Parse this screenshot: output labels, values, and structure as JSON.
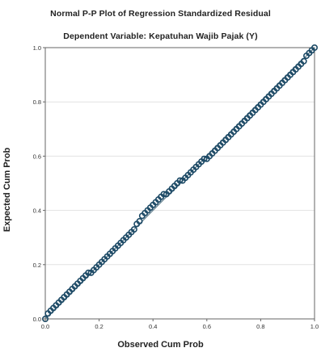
{
  "chart_data": {
    "type": "scatter",
    "title": "Normal P-P Plot of Regression Standardized Residual",
    "subtitle": "Dependent Variable: Kepatuhan Wajib Pajak (Y)",
    "xlabel": "Observed Cum Prob",
    "ylabel": "Expected Cum Prob",
    "xlim": [
      0,
      1
    ],
    "ylim": [
      0,
      1
    ],
    "x_ticks": [
      "0.0",
      "0.2",
      "0.4",
      "0.6",
      "0.8",
      "1.0"
    ],
    "y_ticks": [
      "0.0",
      "0.2",
      "0.4",
      "0.6",
      "0.8",
      "1.0"
    ],
    "grid": "horizontal",
    "reference_line": {
      "from": [
        0,
        0
      ],
      "to": [
        1,
        1
      ]
    },
    "colors": {
      "points": "#1d4a66",
      "reference_line": "#6d8795",
      "grid": "#e2e2e2",
      "axis": "#666666"
    },
    "points": [
      [
        0.0,
        0.0
      ],
      [
        0.01,
        0.02
      ],
      [
        0.02,
        0.03
      ],
      [
        0.03,
        0.04
      ],
      [
        0.04,
        0.05
      ],
      [
        0.05,
        0.06
      ],
      [
        0.06,
        0.07
      ],
      [
        0.07,
        0.08
      ],
      [
        0.08,
        0.09
      ],
      [
        0.09,
        0.1
      ],
      [
        0.1,
        0.11
      ],
      [
        0.11,
        0.12
      ],
      [
        0.12,
        0.13
      ],
      [
        0.13,
        0.14
      ],
      [
        0.14,
        0.15
      ],
      [
        0.15,
        0.16
      ],
      [
        0.16,
        0.17
      ],
      [
        0.17,
        0.17
      ],
      [
        0.18,
        0.18
      ],
      [
        0.19,
        0.19
      ],
      [
        0.2,
        0.2
      ],
      [
        0.21,
        0.21
      ],
      [
        0.22,
        0.22
      ],
      [
        0.23,
        0.23
      ],
      [
        0.24,
        0.24
      ],
      [
        0.25,
        0.25
      ],
      [
        0.26,
        0.26
      ],
      [
        0.27,
        0.27
      ],
      [
        0.28,
        0.28
      ],
      [
        0.29,
        0.29
      ],
      [
        0.3,
        0.3
      ],
      [
        0.31,
        0.31
      ],
      [
        0.32,
        0.32
      ],
      [
        0.33,
        0.33
      ],
      [
        0.34,
        0.35
      ],
      [
        0.35,
        0.36
      ],
      [
        0.36,
        0.38
      ],
      [
        0.37,
        0.39
      ],
      [
        0.38,
        0.4
      ],
      [
        0.39,
        0.41
      ],
      [
        0.4,
        0.42
      ],
      [
        0.41,
        0.43
      ],
      [
        0.42,
        0.44
      ],
      [
        0.43,
        0.45
      ],
      [
        0.44,
        0.46
      ],
      [
        0.45,
        0.46
      ],
      [
        0.46,
        0.47
      ],
      [
        0.47,
        0.48
      ],
      [
        0.48,
        0.49
      ],
      [
        0.49,
        0.5
      ],
      [
        0.5,
        0.51
      ],
      [
        0.51,
        0.51
      ],
      [
        0.52,
        0.52
      ],
      [
        0.53,
        0.53
      ],
      [
        0.54,
        0.54
      ],
      [
        0.55,
        0.55
      ],
      [
        0.56,
        0.56
      ],
      [
        0.57,
        0.57
      ],
      [
        0.58,
        0.58
      ],
      [
        0.59,
        0.59
      ],
      [
        0.6,
        0.59
      ],
      [
        0.61,
        0.6
      ],
      [
        0.62,
        0.61
      ],
      [
        0.63,
        0.62
      ],
      [
        0.64,
        0.63
      ],
      [
        0.65,
        0.64
      ],
      [
        0.66,
        0.65
      ],
      [
        0.67,
        0.66
      ],
      [
        0.68,
        0.67
      ],
      [
        0.69,
        0.68
      ],
      [
        0.7,
        0.69
      ],
      [
        0.71,
        0.7
      ],
      [
        0.72,
        0.71
      ],
      [
        0.73,
        0.72
      ],
      [
        0.74,
        0.73
      ],
      [
        0.75,
        0.74
      ],
      [
        0.76,
        0.75
      ],
      [
        0.77,
        0.76
      ],
      [
        0.78,
        0.77
      ],
      [
        0.79,
        0.78
      ],
      [
        0.8,
        0.79
      ],
      [
        0.81,
        0.8
      ],
      [
        0.82,
        0.81
      ],
      [
        0.83,
        0.82
      ],
      [
        0.84,
        0.83
      ],
      [
        0.85,
        0.84
      ],
      [
        0.86,
        0.85
      ],
      [
        0.87,
        0.86
      ],
      [
        0.88,
        0.87
      ],
      [
        0.89,
        0.88
      ],
      [
        0.9,
        0.89
      ],
      [
        0.91,
        0.9
      ],
      [
        0.92,
        0.91
      ],
      [
        0.93,
        0.92
      ],
      [
        0.94,
        0.93
      ],
      [
        0.95,
        0.94
      ],
      [
        0.96,
        0.95
      ],
      [
        0.97,
        0.97
      ],
      [
        0.98,
        0.98
      ],
      [
        0.99,
        0.99
      ],
      [
        1.0,
        1.0
      ]
    ]
  }
}
